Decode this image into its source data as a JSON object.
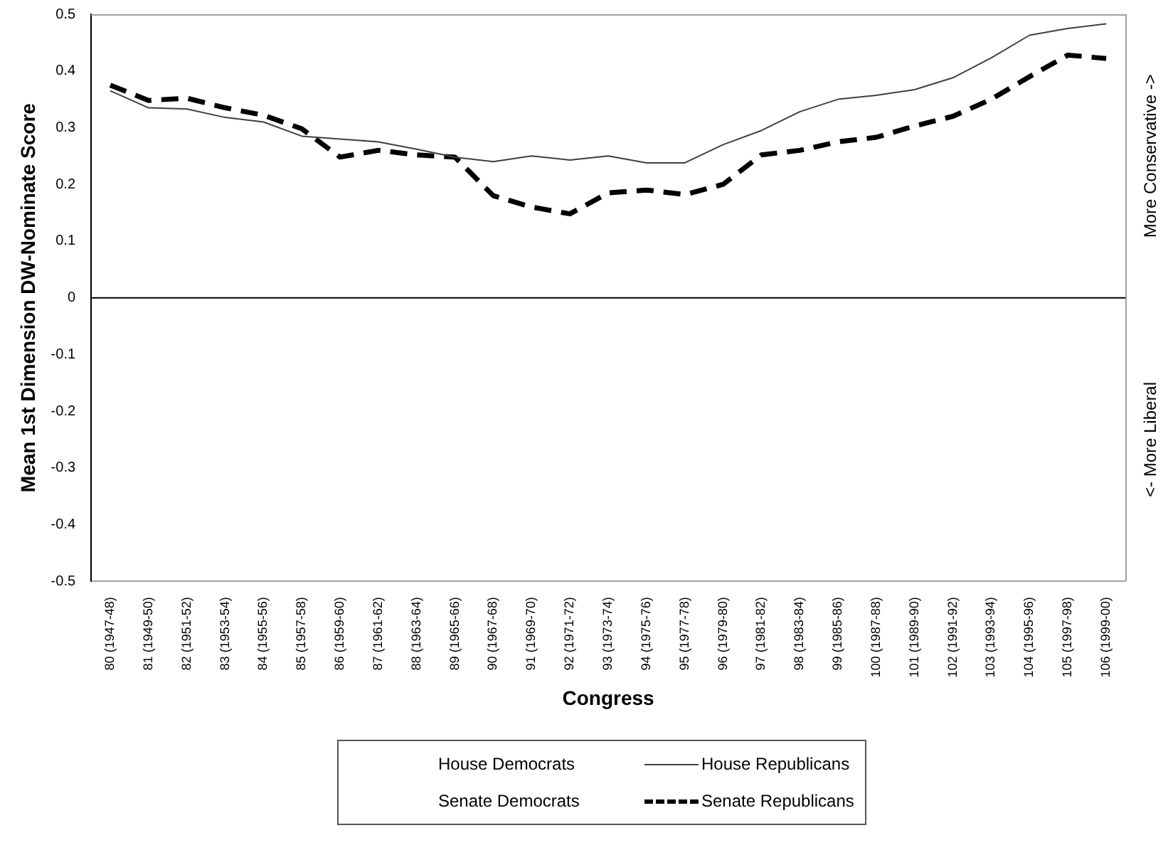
{
  "chart_data": {
    "type": "line",
    "xlabel": "Congress",
    "ylabel": "Mean 1st Dimension DW-Nominate Score",
    "categories": [
      "80 (1947-48)",
      "81 (1949-50)",
      "82 (1951-52)",
      "83 (1953-54)",
      "84 (1955-56)",
      "85 (1957-58)",
      "86 (1959-60)",
      "87 (1961-62)",
      "88 (1963-64)",
      "89 (1965-66)",
      "90 (1967-68)",
      "91 (1969-70)",
      "92 (1971-72)",
      "93 (1973-74)",
      "94 (1975-76)",
      "95 (1977-78)",
      "96 (1979-80)",
      "97 (1981-82)",
      "98 (1983-84)",
      "99 (1985-86)",
      "100 (1987-88)",
      "101 (1989-90)",
      "102 (1991-92)",
      "103 (1993-94)",
      "104 (1995-96)",
      "105 (1997-98)",
      "106 (1999-00)"
    ],
    "series": [
      {
        "name": "House Democrats",
        "values": [
          null,
          null,
          null,
          null,
          null,
          null,
          null,
          null,
          null,
          null,
          null,
          null,
          null,
          null,
          null,
          null,
          null,
          null,
          null,
          null,
          null,
          null,
          null,
          null,
          null,
          null,
          null
        ]
      },
      {
        "name": "House Republicans",
        "color": "#404040",
        "line_style": "solid",
        "values": [
          0.365,
          0.335,
          0.333,
          0.318,
          0.31,
          0.285,
          0.28,
          0.275,
          0.262,
          0.248,
          0.24,
          0.25,
          0.243,
          0.25,
          0.238,
          0.238,
          0.27,
          0.295,
          0.328,
          0.35,
          0.357,
          0.367,
          0.388,
          0.423,
          0.463,
          0.475,
          0.483
        ]
      },
      {
        "name": "Senate Democrats",
        "values": [
          null,
          null,
          null,
          null,
          null,
          null,
          null,
          null,
          null,
          null,
          null,
          null,
          null,
          null,
          null,
          null,
          null,
          null,
          null,
          null,
          null,
          null,
          null,
          null,
          null,
          null,
          null
        ]
      },
      {
        "name": "Senate Republicans",
        "color": "#000000",
        "line_style": "dashed",
        "values": [
          0.375,
          0.348,
          0.352,
          0.335,
          0.322,
          0.298,
          0.248,
          0.26,
          0.252,
          0.248,
          0.18,
          0.16,
          0.148,
          0.185,
          0.19,
          0.182,
          0.2,
          0.252,
          0.26,
          0.275,
          0.283,
          0.303,
          0.32,
          0.35,
          0.39,
          0.428,
          0.422
        ]
      }
    ],
    "ylim": [
      -0.5,
      0.5
    ],
    "yticks": [
      -0.5,
      -0.4,
      -0.3,
      -0.2,
      -0.1,
      0,
      0.1,
      0.2,
      0.3,
      0.4,
      0.5
    ],
    "ref_lines": [
      {
        "axis": "y",
        "value": 0,
        "color": "#000000"
      }
    ],
    "annotations": [
      "More Conservative ->",
      "<- More Liberal"
    ],
    "grid": false,
    "legend": "bottom",
    "marker": "none"
  }
}
